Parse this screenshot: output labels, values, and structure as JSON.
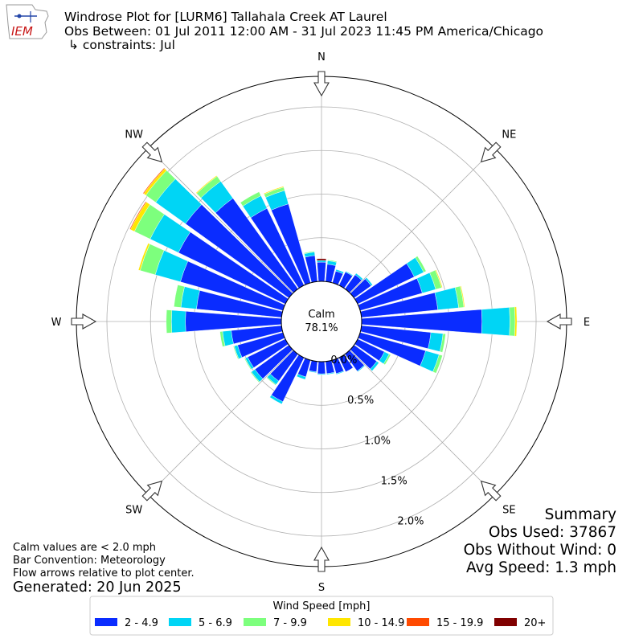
{
  "header": {
    "title_line1": "Windrose Plot for [LURM6] Tallahala Creek  AT Laurel",
    "title_line2": "Obs Between: 01 Jul 2011 12:00 AM - 31 Jul 2023 11:45 PM America/Chicago",
    "title_line3": "↳ constraints: Jul",
    "logo_text": "IEM"
  },
  "calm": {
    "label": "Calm",
    "value": "78.1%"
  },
  "summary": {
    "title": "Summary",
    "obs_used": "Obs Used: 37867",
    "obs_without_wind": "Obs Without Wind: 0",
    "avg_speed": "Avg Speed: 1.3 mph"
  },
  "notes": {
    "line1": "Calm values are < 2.0 mph",
    "line2": "Bar Convention: Meteorology",
    "line3": "Flow arrows relative to plot center.",
    "generated": "Generated: 20 Jun 2025"
  },
  "chart_data": {
    "type": "windrose",
    "direction_labels": [
      "N",
      "NE",
      "E",
      "SE",
      "S",
      "SW",
      "W",
      "NW"
    ],
    "radial_tick_labels": [
      "0.0%",
      "0.5%",
      "1.0%",
      "1.5%",
      "2.0%"
    ],
    "radial_ticks": [
      0,
      0.5,
      1.0,
      1.5,
      2.0
    ],
    "rmax": 2.35,
    "calm_pct": 78.1,
    "legend_title": "Wind Speed [mph]",
    "speed_bins": [
      "2 - 4.9",
      "5 - 6.9",
      "7 - 9.9",
      "10 - 14.9",
      "15 - 19.9",
      "20+"
    ],
    "colors": [
      "#0a2cff",
      "#00d5f5",
      "#7dff7d",
      "#ffe600",
      "#ff4a00",
      "#800000"
    ],
    "directions_deg": [
      0,
      10,
      20,
      30,
      40,
      50,
      60,
      70,
      80,
      90,
      100,
      110,
      120,
      130,
      140,
      150,
      160,
      170,
      180,
      190,
      200,
      210,
      220,
      230,
      240,
      250,
      260,
      270,
      280,
      290,
      300,
      310,
      320,
      330,
      340,
      350
    ],
    "values_by_bin": [
      [
        0.22,
        0.2,
        0.14,
        0.17,
        0.2,
        0.24,
        0.72,
        0.74,
        0.88,
        1.38,
        0.8,
        0.78,
        0.34,
        0.32,
        0.24,
        0.18,
        0.16,
        0.14,
        0.14,
        0.12,
        0.2,
        0.56,
        0.38,
        0.48,
        0.48,
        0.54,
        0.58,
        1.1,
        0.98,
        1.22,
        1.36,
        1.46,
        1.28,
        0.98,
        0.94,
        0.3
      ],
      [
        0.02,
        0.04,
        0.02,
        0.01,
        0.02,
        0.02,
        0.12,
        0.16,
        0.24,
        0.32,
        0.14,
        0.16,
        0.06,
        0.03,
        0.01,
        0.0,
        0.01,
        0.01,
        0.01,
        0.01,
        0.03,
        0.03,
        0.05,
        0.05,
        0.03,
        0.04,
        0.1,
        0.16,
        0.18,
        0.3,
        0.36,
        0.42,
        0.24,
        0.16,
        0.16,
        0.04
      ],
      [
        0.0,
        0.01,
        0.0,
        0.0,
        0.0,
        0.0,
        0.03,
        0.07,
        0.06,
        0.06,
        0.03,
        0.04,
        0.02,
        0.0,
        0.0,
        0.0,
        0.0,
        0.0,
        0.0,
        0.0,
        0.0,
        0.0,
        0.01,
        0.01,
        0.01,
        0.01,
        0.03,
        0.06,
        0.08,
        0.18,
        0.2,
        0.14,
        0.07,
        0.05,
        0.04,
        0.01
      ],
      [
        0.0,
        0.0,
        0.0,
        0.0,
        0.0,
        0.0,
        0.0,
        0.01,
        0.01,
        0.02,
        0.0,
        0.0,
        0.0,
        0.0,
        0.0,
        0.0,
        0.0,
        0.0,
        0.0,
        0.0,
        0.0,
        0.0,
        0.0,
        0.0,
        0.0,
        0.0,
        0.0,
        0.0,
        0.0,
        0.02,
        0.05,
        0.03,
        0.01,
        0.0,
        0.01,
        0.0
      ],
      [
        0.0,
        0.0,
        0.0,
        0.0,
        0.0,
        0.0,
        0.0,
        0.0,
        0.0,
        0.0,
        0.0,
        0.0,
        0.0,
        0.0,
        0.0,
        0.0,
        0.0,
        0.0,
        0.0,
        0.0,
        0.0,
        0.0,
        0.0,
        0.0,
        0.0,
        0.0,
        0.0,
        0.0,
        0.0,
        0.0,
        0.01,
        0.01,
        0.0,
        0.0,
        0.0,
        0.0
      ],
      [
        0.02,
        0.0,
        0.0,
        0.0,
        0.0,
        0.0,
        0.0,
        0.0,
        0.0,
        0.0,
        0.0,
        0.0,
        0.0,
        0.0,
        0.0,
        0.0,
        0.0,
        0.0,
        0.0,
        0.0,
        0.0,
        0.0,
        0.0,
        0.0,
        0.0,
        0.0,
        0.0,
        0.0,
        0.0,
        0.0,
        0.0,
        0.0,
        0.0,
        0.0,
        0.0,
        0.0
      ]
    ]
  }
}
